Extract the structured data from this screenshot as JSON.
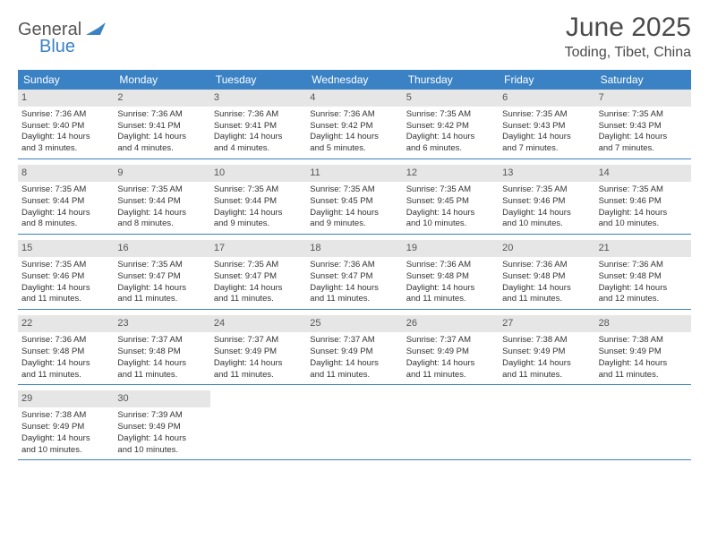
{
  "logo": {
    "general": "General",
    "blue": "Blue"
  },
  "title": "June 2025",
  "location": "Toding, Tibet, China",
  "colors": {
    "header_bg": "#3b82c4",
    "header_text": "#ffffff",
    "daynum_bg": "#e6e6e6",
    "border": "#3b82c4",
    "text": "#333333",
    "logo_gray": "#555555",
    "logo_blue": "#3b82c4"
  },
  "weekdays": [
    "Sunday",
    "Monday",
    "Tuesday",
    "Wednesday",
    "Thursday",
    "Friday",
    "Saturday"
  ],
  "days": [
    {
      "n": "1",
      "sr": "Sunrise: 7:36 AM",
      "ss": "Sunset: 9:40 PM",
      "d1": "Daylight: 14 hours",
      "d2": "and 3 minutes."
    },
    {
      "n": "2",
      "sr": "Sunrise: 7:36 AM",
      "ss": "Sunset: 9:41 PM",
      "d1": "Daylight: 14 hours",
      "d2": "and 4 minutes."
    },
    {
      "n": "3",
      "sr": "Sunrise: 7:36 AM",
      "ss": "Sunset: 9:41 PM",
      "d1": "Daylight: 14 hours",
      "d2": "and 4 minutes."
    },
    {
      "n": "4",
      "sr": "Sunrise: 7:36 AM",
      "ss": "Sunset: 9:42 PM",
      "d1": "Daylight: 14 hours",
      "d2": "and 5 minutes."
    },
    {
      "n": "5",
      "sr": "Sunrise: 7:35 AM",
      "ss": "Sunset: 9:42 PM",
      "d1": "Daylight: 14 hours",
      "d2": "and 6 minutes."
    },
    {
      "n": "6",
      "sr": "Sunrise: 7:35 AM",
      "ss": "Sunset: 9:43 PM",
      "d1": "Daylight: 14 hours",
      "d2": "and 7 minutes."
    },
    {
      "n": "7",
      "sr": "Sunrise: 7:35 AM",
      "ss": "Sunset: 9:43 PM",
      "d1": "Daylight: 14 hours",
      "d2": "and 7 minutes."
    },
    {
      "n": "8",
      "sr": "Sunrise: 7:35 AM",
      "ss": "Sunset: 9:44 PM",
      "d1": "Daylight: 14 hours",
      "d2": "and 8 minutes."
    },
    {
      "n": "9",
      "sr": "Sunrise: 7:35 AM",
      "ss": "Sunset: 9:44 PM",
      "d1": "Daylight: 14 hours",
      "d2": "and 8 minutes."
    },
    {
      "n": "10",
      "sr": "Sunrise: 7:35 AM",
      "ss": "Sunset: 9:44 PM",
      "d1": "Daylight: 14 hours",
      "d2": "and 9 minutes."
    },
    {
      "n": "11",
      "sr": "Sunrise: 7:35 AM",
      "ss": "Sunset: 9:45 PM",
      "d1": "Daylight: 14 hours",
      "d2": "and 9 minutes."
    },
    {
      "n": "12",
      "sr": "Sunrise: 7:35 AM",
      "ss": "Sunset: 9:45 PM",
      "d1": "Daylight: 14 hours",
      "d2": "and 10 minutes."
    },
    {
      "n": "13",
      "sr": "Sunrise: 7:35 AM",
      "ss": "Sunset: 9:46 PM",
      "d1": "Daylight: 14 hours",
      "d2": "and 10 minutes."
    },
    {
      "n": "14",
      "sr": "Sunrise: 7:35 AM",
      "ss": "Sunset: 9:46 PM",
      "d1": "Daylight: 14 hours",
      "d2": "and 10 minutes."
    },
    {
      "n": "15",
      "sr": "Sunrise: 7:35 AM",
      "ss": "Sunset: 9:46 PM",
      "d1": "Daylight: 14 hours",
      "d2": "and 11 minutes."
    },
    {
      "n": "16",
      "sr": "Sunrise: 7:35 AM",
      "ss": "Sunset: 9:47 PM",
      "d1": "Daylight: 14 hours",
      "d2": "and 11 minutes."
    },
    {
      "n": "17",
      "sr": "Sunrise: 7:35 AM",
      "ss": "Sunset: 9:47 PM",
      "d1": "Daylight: 14 hours",
      "d2": "and 11 minutes."
    },
    {
      "n": "18",
      "sr": "Sunrise: 7:36 AM",
      "ss": "Sunset: 9:47 PM",
      "d1": "Daylight: 14 hours",
      "d2": "and 11 minutes."
    },
    {
      "n": "19",
      "sr": "Sunrise: 7:36 AM",
      "ss": "Sunset: 9:48 PM",
      "d1": "Daylight: 14 hours",
      "d2": "and 11 minutes."
    },
    {
      "n": "20",
      "sr": "Sunrise: 7:36 AM",
      "ss": "Sunset: 9:48 PM",
      "d1": "Daylight: 14 hours",
      "d2": "and 11 minutes."
    },
    {
      "n": "21",
      "sr": "Sunrise: 7:36 AM",
      "ss": "Sunset: 9:48 PM",
      "d1": "Daylight: 14 hours",
      "d2": "and 12 minutes."
    },
    {
      "n": "22",
      "sr": "Sunrise: 7:36 AM",
      "ss": "Sunset: 9:48 PM",
      "d1": "Daylight: 14 hours",
      "d2": "and 11 minutes."
    },
    {
      "n": "23",
      "sr": "Sunrise: 7:37 AM",
      "ss": "Sunset: 9:48 PM",
      "d1": "Daylight: 14 hours",
      "d2": "and 11 minutes."
    },
    {
      "n": "24",
      "sr": "Sunrise: 7:37 AM",
      "ss": "Sunset: 9:49 PM",
      "d1": "Daylight: 14 hours",
      "d2": "and 11 minutes."
    },
    {
      "n": "25",
      "sr": "Sunrise: 7:37 AM",
      "ss": "Sunset: 9:49 PM",
      "d1": "Daylight: 14 hours",
      "d2": "and 11 minutes."
    },
    {
      "n": "26",
      "sr": "Sunrise: 7:37 AM",
      "ss": "Sunset: 9:49 PM",
      "d1": "Daylight: 14 hours",
      "d2": "and 11 minutes."
    },
    {
      "n": "27",
      "sr": "Sunrise: 7:38 AM",
      "ss": "Sunset: 9:49 PM",
      "d1": "Daylight: 14 hours",
      "d2": "and 11 minutes."
    },
    {
      "n": "28",
      "sr": "Sunrise: 7:38 AM",
      "ss": "Sunset: 9:49 PM",
      "d1": "Daylight: 14 hours",
      "d2": "and 11 minutes."
    },
    {
      "n": "29",
      "sr": "Sunrise: 7:38 AM",
      "ss": "Sunset: 9:49 PM",
      "d1": "Daylight: 14 hours",
      "d2": "and 10 minutes."
    },
    {
      "n": "30",
      "sr": "Sunrise: 7:39 AM",
      "ss": "Sunset: 9:49 PM",
      "d1": "Daylight: 14 hours",
      "d2": "and 10 minutes."
    }
  ]
}
